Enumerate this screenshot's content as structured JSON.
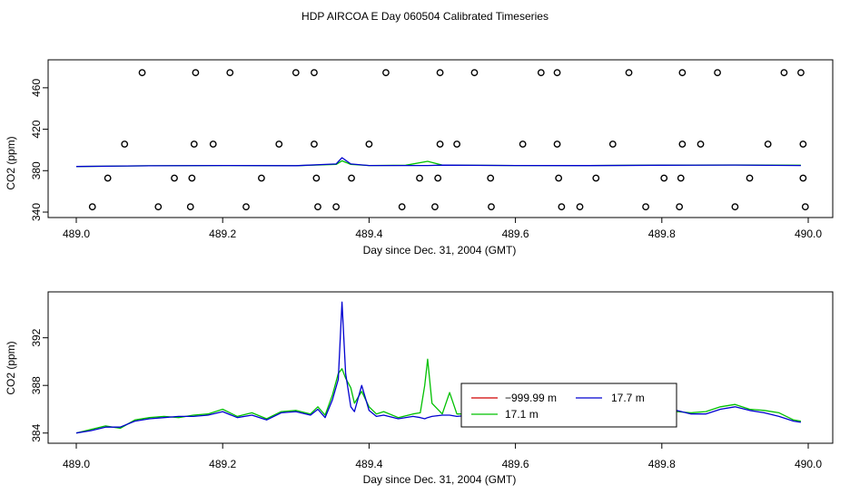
{
  "title": "HDP AIRCOA E  Day 060504  Calibrated Timeseries",
  "colors": {
    "green": "#00c000",
    "blue": "#0000d0",
    "red": "#d00000",
    "axis": "#000000"
  },
  "chart_data": [
    {
      "type": "scatter+line",
      "xlabel": "Day since Dec. 31, 2004 (GMT)",
      "ylabel": "CO2 (ppm)",
      "xlim": [
        489.0,
        490.0
      ],
      "ylim": [
        340,
        480
      ],
      "xticks": [
        "489.0",
        "489.2",
        "489.4",
        "489.6",
        "489.8",
        "490.0"
      ],
      "xtick_values": [
        489.0,
        489.2,
        489.4,
        489.6,
        489.8,
        490.0
      ],
      "yticks": [
        "340",
        "380",
        "420",
        "460"
      ],
      "ytick_values": [
        340,
        380,
        420,
        460
      ],
      "marker_series": {
        "style": "open-circle",
        "points": [
          [
            489.09,
            474.6
          ],
          [
            489.163,
            474.6
          ],
          [
            489.21,
            474.6
          ],
          [
            489.3,
            474.6
          ],
          [
            489.325,
            474.6
          ],
          [
            489.423,
            474.6
          ],
          [
            489.497,
            474.6
          ],
          [
            489.544,
            474.6
          ],
          [
            489.635,
            474.6
          ],
          [
            489.657,
            474.6
          ],
          [
            489.755,
            474.6
          ],
          [
            489.828,
            474.6
          ],
          [
            489.876,
            474.6
          ],
          [
            489.967,
            474.6
          ],
          [
            489.99,
            474.6
          ],
          [
            489.066,
            405.6
          ],
          [
            489.161,
            405.6
          ],
          [
            489.187,
            405.6
          ],
          [
            489.277,
            405.6
          ],
          [
            489.325,
            405.6
          ],
          [
            489.4,
            405.6
          ],
          [
            489.497,
            405.6
          ],
          [
            489.52,
            405.6
          ],
          [
            489.61,
            405.6
          ],
          [
            489.657,
            405.6
          ],
          [
            489.733,
            405.6
          ],
          [
            489.828,
            405.6
          ],
          [
            489.853,
            405.6
          ],
          [
            489.945,
            405.6
          ],
          [
            489.993,
            405.6
          ],
          [
            489.043,
            372.8
          ],
          [
            489.134,
            372.8
          ],
          [
            489.158,
            372.8
          ],
          [
            489.253,
            372.8
          ],
          [
            489.328,
            372.8
          ],
          [
            489.376,
            372.8
          ],
          [
            489.469,
            372.8
          ],
          [
            489.494,
            372.8
          ],
          [
            489.566,
            372.8
          ],
          [
            489.659,
            372.8
          ],
          [
            489.71,
            372.8
          ],
          [
            489.803,
            372.8
          ],
          [
            489.826,
            372.8
          ],
          [
            489.92,
            372.8
          ],
          [
            489.993,
            372.8
          ],
          [
            489.022,
            345.1
          ],
          [
            489.112,
            345.1
          ],
          [
            489.156,
            345.1
          ],
          [
            489.232,
            345.1
          ],
          [
            489.33,
            345.1
          ],
          [
            489.355,
            345.1
          ],
          [
            489.445,
            345.1
          ],
          [
            489.49,
            345.1
          ],
          [
            489.567,
            345.1
          ],
          [
            489.663,
            345.1
          ],
          [
            489.688,
            345.1
          ],
          [
            489.778,
            345.1
          ],
          [
            489.824,
            345.1
          ],
          [
            489.9,
            345.1
          ],
          [
            489.996,
            345.1
          ]
        ]
      },
      "series": [
        {
          "color": "green",
          "x": [
            489.0,
            489.1,
            489.2,
            489.3,
            489.355,
            489.363,
            489.375,
            489.4,
            489.45,
            489.48,
            489.5,
            489.6,
            489.7,
            489.8,
            489.9,
            489.99
          ],
          "values": [
            384.0,
            384.7,
            385.0,
            384.8,
            386.0,
            389.5,
            386.0,
            385.0,
            385.2,
            389.0,
            385.4,
            385.0,
            385.0,
            385.3,
            385.5,
            385.2
          ]
        },
        {
          "color": "blue",
          "x": [
            489.0,
            489.1,
            489.2,
            489.3,
            489.355,
            489.363,
            489.375,
            489.4,
            489.45,
            489.48,
            489.5,
            489.6,
            489.7,
            489.8,
            489.9,
            489.99
          ],
          "values": [
            384.0,
            384.7,
            385.0,
            384.8,
            386.5,
            392.5,
            386.5,
            385.0,
            385.0,
            385.0,
            385.3,
            385.0,
            384.9,
            385.2,
            385.4,
            385.0
          ]
        }
      ]
    },
    {
      "type": "line",
      "xlabel": "Day since Dec. 31, 2004 (GMT)",
      "ylabel": "CO2 (ppm)",
      "xlim": [
        489.0,
        490.0
      ],
      "ylim": [
        383.6,
        395.4
      ],
      "xticks": [
        "489.0",
        "489.2",
        "489.4",
        "489.6",
        "489.8",
        "490.0"
      ],
      "xtick_values": [
        489.0,
        489.2,
        489.4,
        489.6,
        489.8,
        490.0
      ],
      "yticks": [
        "384",
        "388",
        "392"
      ],
      "ytick_values": [
        384,
        388,
        392
      ],
      "legend": {
        "placement": "lower-right",
        "entries": [
          {
            "label": "−999.99 m",
            "color": "red"
          },
          {
            "label": "17.7 m",
            "color": "blue"
          },
          {
            "label": "17.1 m",
            "color": "green"
          }
        ]
      },
      "series": [
        {
          "name": "17.1 m",
          "color": "green",
          "x": [
            489.0,
            489.02,
            489.04,
            489.06,
            489.08,
            489.1,
            489.12,
            489.14,
            489.16,
            489.18,
            489.2,
            489.22,
            489.24,
            489.26,
            489.28,
            489.3,
            489.32,
            489.33,
            489.34,
            489.35,
            489.358,
            489.363,
            489.368,
            489.375,
            489.38,
            489.39,
            489.4,
            489.41,
            489.42,
            489.44,
            489.46,
            489.47,
            489.476,
            489.48,
            489.486,
            489.5,
            489.51,
            489.52,
            489.54,
            489.56,
            489.58,
            489.6,
            489.62,
            489.64,
            489.66,
            489.67,
            489.68,
            489.7,
            489.72,
            489.74,
            489.76,
            489.78,
            489.8,
            489.82,
            489.84,
            489.86,
            489.88,
            489.9,
            489.92,
            489.94,
            489.96,
            489.98,
            489.99
          ],
          "values": [
            384.0,
            384.3,
            384.6,
            384.4,
            385.1,
            385.3,
            385.4,
            385.3,
            385.5,
            385.6,
            386.0,
            385.4,
            385.7,
            385.2,
            385.8,
            385.9,
            385.6,
            386.2,
            385.5,
            387.2,
            389.0,
            389.4,
            388.6,
            387.8,
            386.5,
            387.5,
            386.2,
            385.6,
            385.8,
            385.3,
            385.6,
            385.7,
            388.0,
            390.2,
            386.5,
            385.6,
            387.4,
            385.6,
            385.6,
            385.4,
            385.6,
            385.5,
            385.3,
            385.7,
            385.3,
            386.0,
            385.8,
            385.4,
            385.1,
            385.3,
            385.0,
            385.3,
            385.6,
            385.8,
            385.7,
            385.8,
            386.2,
            386.4,
            386.0,
            385.9,
            385.7,
            385.1,
            385.0
          ]
        },
        {
          "name": "17.7 m",
          "color": "blue",
          "x": [
            489.0,
            489.02,
            489.04,
            489.06,
            489.08,
            489.1,
            489.12,
            489.14,
            489.16,
            489.18,
            489.2,
            489.22,
            489.24,
            489.26,
            489.28,
            489.3,
            489.32,
            489.33,
            489.34,
            489.35,
            489.358,
            489.363,
            489.368,
            489.375,
            489.38,
            489.39,
            489.4,
            489.41,
            489.42,
            489.44,
            489.46,
            489.47,
            489.476,
            489.48,
            489.486,
            489.5,
            489.51,
            489.52,
            489.54,
            489.56,
            489.58,
            489.6,
            489.62,
            489.64,
            489.66,
            489.67,
            489.68,
            489.7,
            489.72,
            489.74,
            489.76,
            489.78,
            489.8,
            489.82,
            489.84,
            489.86,
            489.88,
            489.9,
            489.92,
            489.94,
            489.96,
            489.98,
            489.99
          ],
          "values": [
            384.0,
            384.2,
            384.5,
            384.5,
            385.0,
            385.2,
            385.3,
            385.4,
            385.4,
            385.5,
            385.8,
            385.3,
            385.5,
            385.1,
            385.7,
            385.8,
            385.5,
            386.0,
            385.3,
            386.8,
            388.5,
            395.0,
            389.0,
            386.2,
            385.8,
            388.0,
            385.9,
            385.4,
            385.5,
            385.2,
            385.4,
            385.3,
            385.2,
            385.3,
            385.4,
            385.5,
            385.5,
            385.4,
            385.5,
            385.3,
            385.4,
            385.3,
            385.2,
            385.4,
            385.2,
            386.3,
            385.6,
            385.2,
            385.0,
            385.1,
            384.9,
            385.2,
            385.5,
            385.9,
            385.6,
            385.6,
            386.0,
            386.2,
            385.9,
            385.7,
            385.4,
            385.0,
            384.9
          ]
        }
      ]
    }
  ]
}
